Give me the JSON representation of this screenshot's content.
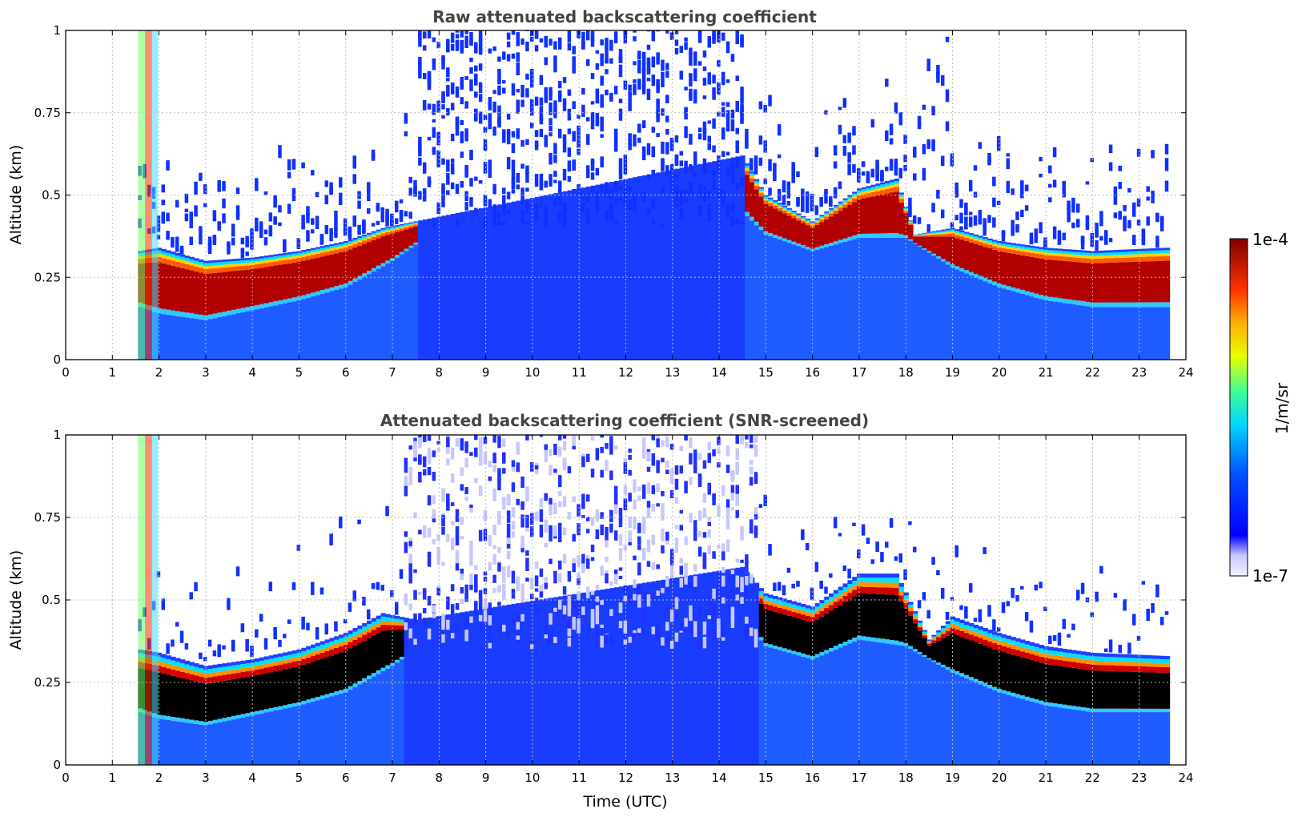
{
  "chart_data": [
    {
      "type": "heatmap",
      "title": "Raw attenuated backscattering coefficient",
      "xlabel": "",
      "ylabel": "Altitude (km)",
      "xlim": [
        0,
        24
      ],
      "ylim": [
        0,
        1
      ],
      "xticks": [
        0,
        1,
        2,
        3,
        4,
        5,
        6,
        7,
        8,
        9,
        10,
        11,
        12,
        13,
        14,
        15,
        16,
        17,
        18,
        19,
        20,
        21,
        22,
        23,
        24
      ],
      "yticks": [
        0,
        0.25,
        0.5,
        0.75,
        1
      ],
      "ytick_labels": [
        "0",
        "0.25",
        "0.5",
        "0.75",
        "1"
      ],
      "grid": true,
      "screened": false,
      "data_x_range": [
        1.55,
        23.65
      ],
      "layer_top_km": [
        [
          1.6,
          0.33
        ],
        [
          2.0,
          0.34
        ],
        [
          3.0,
          0.3
        ],
        [
          4.0,
          0.31
        ],
        [
          5.0,
          0.33
        ],
        [
          6.0,
          0.36
        ],
        [
          6.8,
          0.4
        ],
        [
          7.5,
          0.42
        ],
        [
          14.5,
          0.62
        ],
        [
          15.0,
          0.5
        ],
        [
          16.0,
          0.42
        ],
        [
          17.0,
          0.52
        ],
        [
          17.8,
          0.55
        ],
        [
          18.2,
          0.38
        ],
        [
          19.0,
          0.4
        ],
        [
          20.0,
          0.36
        ],
        [
          21.0,
          0.34
        ],
        [
          22.0,
          0.33
        ],
        [
          23.6,
          0.34
        ]
      ],
      "layer_bottom_km": [
        [
          1.6,
          0.16
        ],
        [
          2.0,
          0.14
        ],
        [
          3.0,
          0.12
        ],
        [
          4.0,
          0.15
        ],
        [
          5.0,
          0.18
        ],
        [
          6.0,
          0.22
        ],
        [
          7.0,
          0.3
        ],
        [
          7.5,
          0.35
        ],
        [
          14.5,
          0.45
        ],
        [
          15.0,
          0.38
        ],
        [
          16.0,
          0.33
        ],
        [
          17.0,
          0.37
        ],
        [
          18.0,
          0.37
        ],
        [
          19.0,
          0.28
        ],
        [
          20.0,
          0.22
        ],
        [
          21.0,
          0.18
        ],
        [
          22.0,
          0.16
        ],
        [
          23.6,
          0.16
        ]
      ],
      "noisy_window_utc": [
        7.5,
        14.5
      ]
    },
    {
      "type": "heatmap",
      "title": "Attenuated backscattering coefficient (SNR-screened)",
      "xlabel": "Time (UTC)",
      "ylabel": "Altitude (km)",
      "xlim": [
        0,
        24
      ],
      "ylim": [
        0,
        1
      ],
      "xticks": [
        0,
        1,
        2,
        3,
        4,
        5,
        6,
        7,
        8,
        9,
        10,
        11,
        12,
        13,
        14,
        15,
        16,
        17,
        18,
        19,
        20,
        21,
        22,
        23,
        24
      ],
      "yticks": [
        0,
        0.25,
        0.5,
        0.75,
        1
      ],
      "ytick_labels": [
        "0",
        "0.25",
        "0.5",
        "0.75",
        "1"
      ],
      "grid": true,
      "screened": true,
      "data_x_range": [
        1.55,
        23.65
      ],
      "layer_top_km": [
        [
          1.6,
          0.35
        ],
        [
          2.0,
          0.34
        ],
        [
          3.0,
          0.3
        ],
        [
          4.0,
          0.32
        ],
        [
          5.0,
          0.35
        ],
        [
          6.0,
          0.4
        ],
        [
          6.8,
          0.46
        ],
        [
          7.5,
          0.44
        ],
        [
          14.5,
          0.6
        ],
        [
          15.0,
          0.52
        ],
        [
          16.0,
          0.48
        ],
        [
          17.0,
          0.58
        ],
        [
          17.8,
          0.58
        ],
        [
          18.5,
          0.38
        ],
        [
          19.0,
          0.45
        ],
        [
          20.0,
          0.4
        ],
        [
          21.0,
          0.36
        ],
        [
          22.0,
          0.34
        ],
        [
          23.6,
          0.33
        ]
      ],
      "layer_bottom_km": [
        [
          1.6,
          0.16
        ],
        [
          2.0,
          0.14
        ],
        [
          3.0,
          0.12
        ],
        [
          4.0,
          0.15
        ],
        [
          5.0,
          0.18
        ],
        [
          6.0,
          0.22
        ],
        [
          7.0,
          0.3
        ],
        [
          7.5,
          0.35
        ],
        [
          14.5,
          0.45
        ],
        [
          15.0,
          0.36
        ],
        [
          16.0,
          0.32
        ],
        [
          17.0,
          0.38
        ],
        [
          18.0,
          0.36
        ],
        [
          19.0,
          0.28
        ],
        [
          20.0,
          0.22
        ],
        [
          21.0,
          0.18
        ],
        [
          22.0,
          0.16
        ],
        [
          23.6,
          0.16
        ]
      ],
      "noisy_window_utc": [
        7.2,
        14.8
      ]
    }
  ],
  "colorbar": {
    "label": "1/m/sr",
    "max_label": "1e-4",
    "min_label": "1e-7",
    "colormap": "jet",
    "scale": "log"
  },
  "colors": {
    "title": "#444444",
    "grid": "#bbbbbb",
    "low": "#0000ff",
    "high": "#800000",
    "screened_saturation": "#000000"
  }
}
